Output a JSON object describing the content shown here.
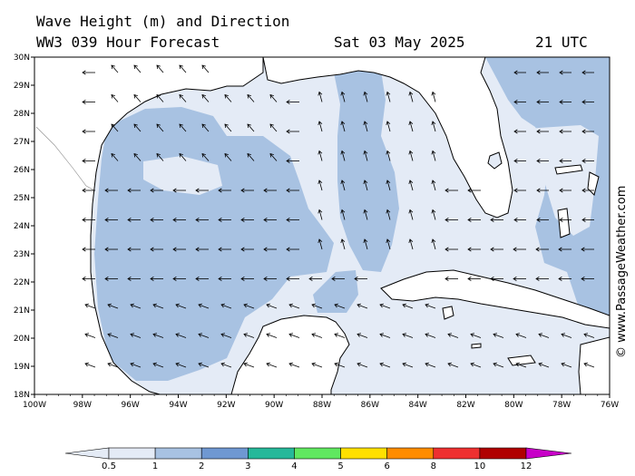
{
  "header": {
    "title": "Wave Height (m) and Direction",
    "model": "WW3 039 Hour Forecast",
    "date": "Sat 03 May 2025",
    "time": "21 UTC"
  },
  "credit": "© www.PassageWeather.com",
  "axes": {
    "lon_labels": [
      "100W",
      "98W",
      "96W",
      "94W",
      "92W",
      "90W",
      "88W",
      "86W",
      "84W",
      "82W",
      "80W",
      "78W",
      "76W"
    ],
    "lat_labels": [
      "18N",
      "19N",
      "20N",
      "21N",
      "22N",
      "23N",
      "24N",
      "25N",
      "26N",
      "27N",
      "28N",
      "29N",
      "30N"
    ]
  },
  "legend": {
    "labels": [
      "0.5",
      "1",
      "2",
      "3",
      "4",
      "5",
      "6",
      "8",
      "10",
      "12"
    ],
    "colors": [
      "#e4ebf6",
      "#a8c2e2",
      "#6f98d2",
      "#26b89a",
      "#60e860",
      "#ffe000",
      "#ff8c00",
      "#ee3030",
      "#b00000",
      "#c800c8"
    ]
  },
  "map_colors": {
    "land": "#ffffff",
    "sea_lt05": "#e4ebf6",
    "sea_05_1": "#a8c2e2",
    "arrow": "#000000"
  }
}
